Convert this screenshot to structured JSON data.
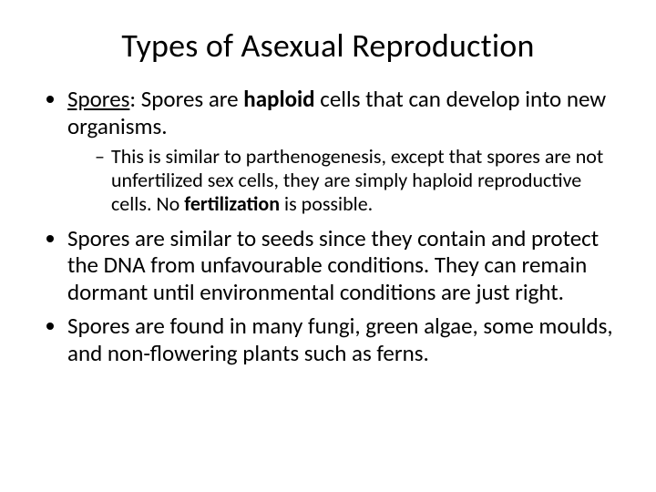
{
  "slide": {
    "title": "Types of Asexual Reproduction",
    "title_fontsize": 36,
    "body_fontsize_l1": 25,
    "body_fontsize_l2": 22,
    "text_color": "#000000",
    "background_color": "#ffffff",
    "bullets": {
      "b1_prefix": "Spores",
      "b1_mid1": ": Spores are ",
      "b1_bold": "haploid",
      "b1_mid2": " cells that can develop into new organisms.",
      "b1_sub_pre": "This is similar to parthenogenesis, except that spores are not unfertilized sex cells, they are simply haploid reproductive cells. No ",
      "b1_sub_bold": "fertilization",
      "b1_sub_post": " is possible.",
      "b2": "Spores are similar to seeds since they contain and protect the DNA from unfavourable conditions. They can remain dormant until environmental conditions are just right.",
      "b3": "Spores are found in many fungi, green algae, some moulds, and non-flowering plants such as ferns."
    }
  }
}
